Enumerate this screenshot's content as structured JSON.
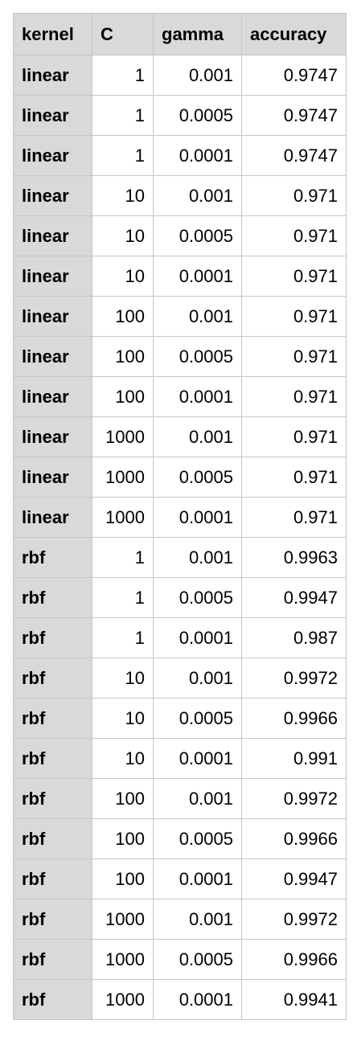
{
  "table": {
    "headers": [
      "kernel",
      "C",
      "gamma",
      "accuracy"
    ],
    "rows": [
      [
        "linear",
        "1",
        "0.001",
        "0.9747"
      ],
      [
        "linear",
        "1",
        "0.0005",
        "0.9747"
      ],
      [
        "linear",
        "1",
        "0.0001",
        "0.9747"
      ],
      [
        "linear",
        "10",
        "0.001",
        "0.971"
      ],
      [
        "linear",
        "10",
        "0.0005",
        "0.971"
      ],
      [
        "linear",
        "10",
        "0.0001",
        "0.971"
      ],
      [
        "linear",
        "100",
        "0.001",
        "0.971"
      ],
      [
        "linear",
        "100",
        "0.0005",
        "0.971"
      ],
      [
        "linear",
        "100",
        "0.0001",
        "0.971"
      ],
      [
        "linear",
        "1000",
        "0.001",
        "0.971"
      ],
      [
        "linear",
        "1000",
        "0.0005",
        "0.971"
      ],
      [
        "linear",
        "1000",
        "0.0001",
        "0.971"
      ],
      [
        "rbf",
        "1",
        "0.001",
        "0.9963"
      ],
      [
        "rbf",
        "1",
        "0.0005",
        "0.9947"
      ],
      [
        "rbf",
        "1",
        "0.0001",
        "0.987"
      ],
      [
        "rbf",
        "10",
        "0.001",
        "0.9972"
      ],
      [
        "rbf",
        "10",
        "0.0005",
        "0.9966"
      ],
      [
        "rbf",
        "10",
        "0.0001",
        "0.991"
      ],
      [
        "rbf",
        "100",
        "0.001",
        "0.9972"
      ],
      [
        "rbf",
        "100",
        "0.0005",
        "0.9966"
      ],
      [
        "rbf",
        "100",
        "0.0001",
        "0.9947"
      ],
      [
        "rbf",
        "1000",
        "0.001",
        "0.9972"
      ],
      [
        "rbf",
        "1000",
        "0.0005",
        "0.9966"
      ],
      [
        "rbf",
        "1000",
        "0.0001",
        "0.9941"
      ]
    ]
  },
  "colors": {
    "header_bg": "#d9d9d9",
    "label_col_bg": "#d9d9d9",
    "cell_bg": "#ffffff",
    "border": "#c6c6c6"
  }
}
